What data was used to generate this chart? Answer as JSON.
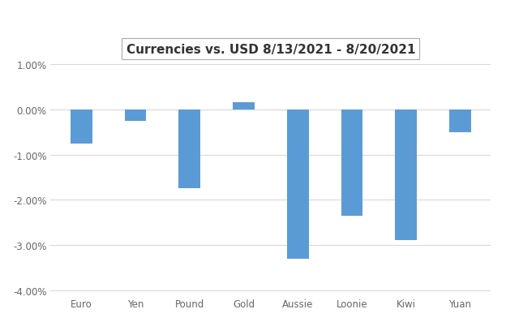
{
  "title": "Currencies vs. USD 8/13/2021 - 8/20/2021",
  "categories": [
    "Euro",
    "Yen",
    "Pound",
    "Gold",
    "Aussie",
    "Loonie",
    "Kiwi",
    "Yuan"
  ],
  "values": [
    -0.0075,
    -0.0025,
    -0.0175,
    0.0015,
    -0.033,
    -0.0235,
    -0.029,
    -0.005
  ],
  "bar_color": "#5B9BD5",
  "background_color": "#FFFFFF",
  "plot_bg_color": "#FFFFFF",
  "ylim": [
    -0.041,
    0.011
  ],
  "yticks": [
    -0.04,
    -0.03,
    -0.02,
    -0.01,
    0.0,
    0.01
  ],
  "grid_color": "#D9D9D9",
  "title_fontsize": 11,
  "tick_fontsize": 8.5,
  "bar_width": 0.4
}
